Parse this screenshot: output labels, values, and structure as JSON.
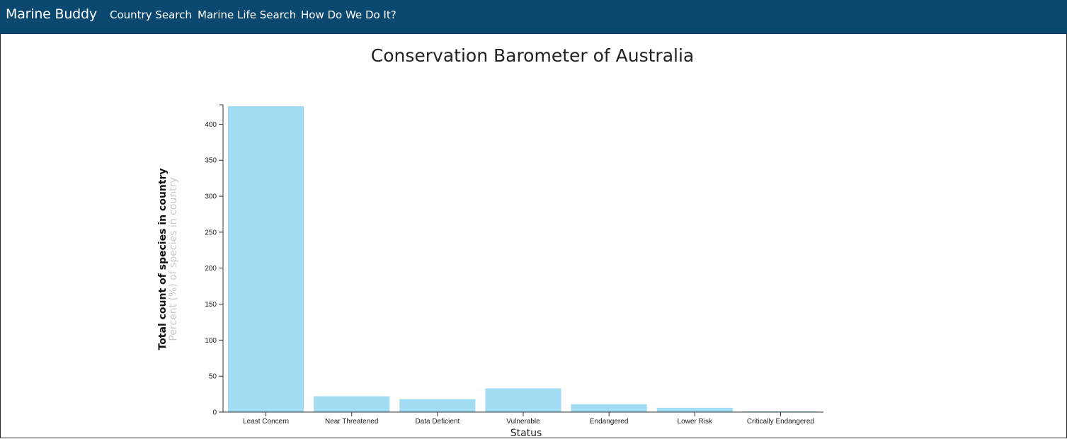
{
  "navbar": {
    "brand": "Marine Buddy",
    "links": [
      {
        "label": "Country Search"
      },
      {
        "label": "Marine Life Search"
      },
      {
        "label": "How Do We Do It?"
      }
    ],
    "background": "#0b4870"
  },
  "page": {
    "title": "Conservation Barometer of Australia"
  },
  "chart_data": {
    "type": "bar",
    "categories": [
      "Least Concern",
      "Near Threatened",
      "Data Deficient",
      "Vulnerable",
      "Endangered",
      "Lower Risk",
      "Critically Endangered"
    ],
    "values": [
      425,
      22,
      18,
      33,
      11,
      6,
      1
    ],
    "xlabel": "Status",
    "ylabel": "Total count of species in country",
    "ylabel_secondary": "Percent (%) of species in country",
    "ylim": [
      0,
      425
    ],
    "yticks": [
      0,
      50,
      100,
      150,
      200,
      250,
      300,
      350,
      400
    ],
    "bar_color": "#a2dcf2",
    "grid": false
  }
}
